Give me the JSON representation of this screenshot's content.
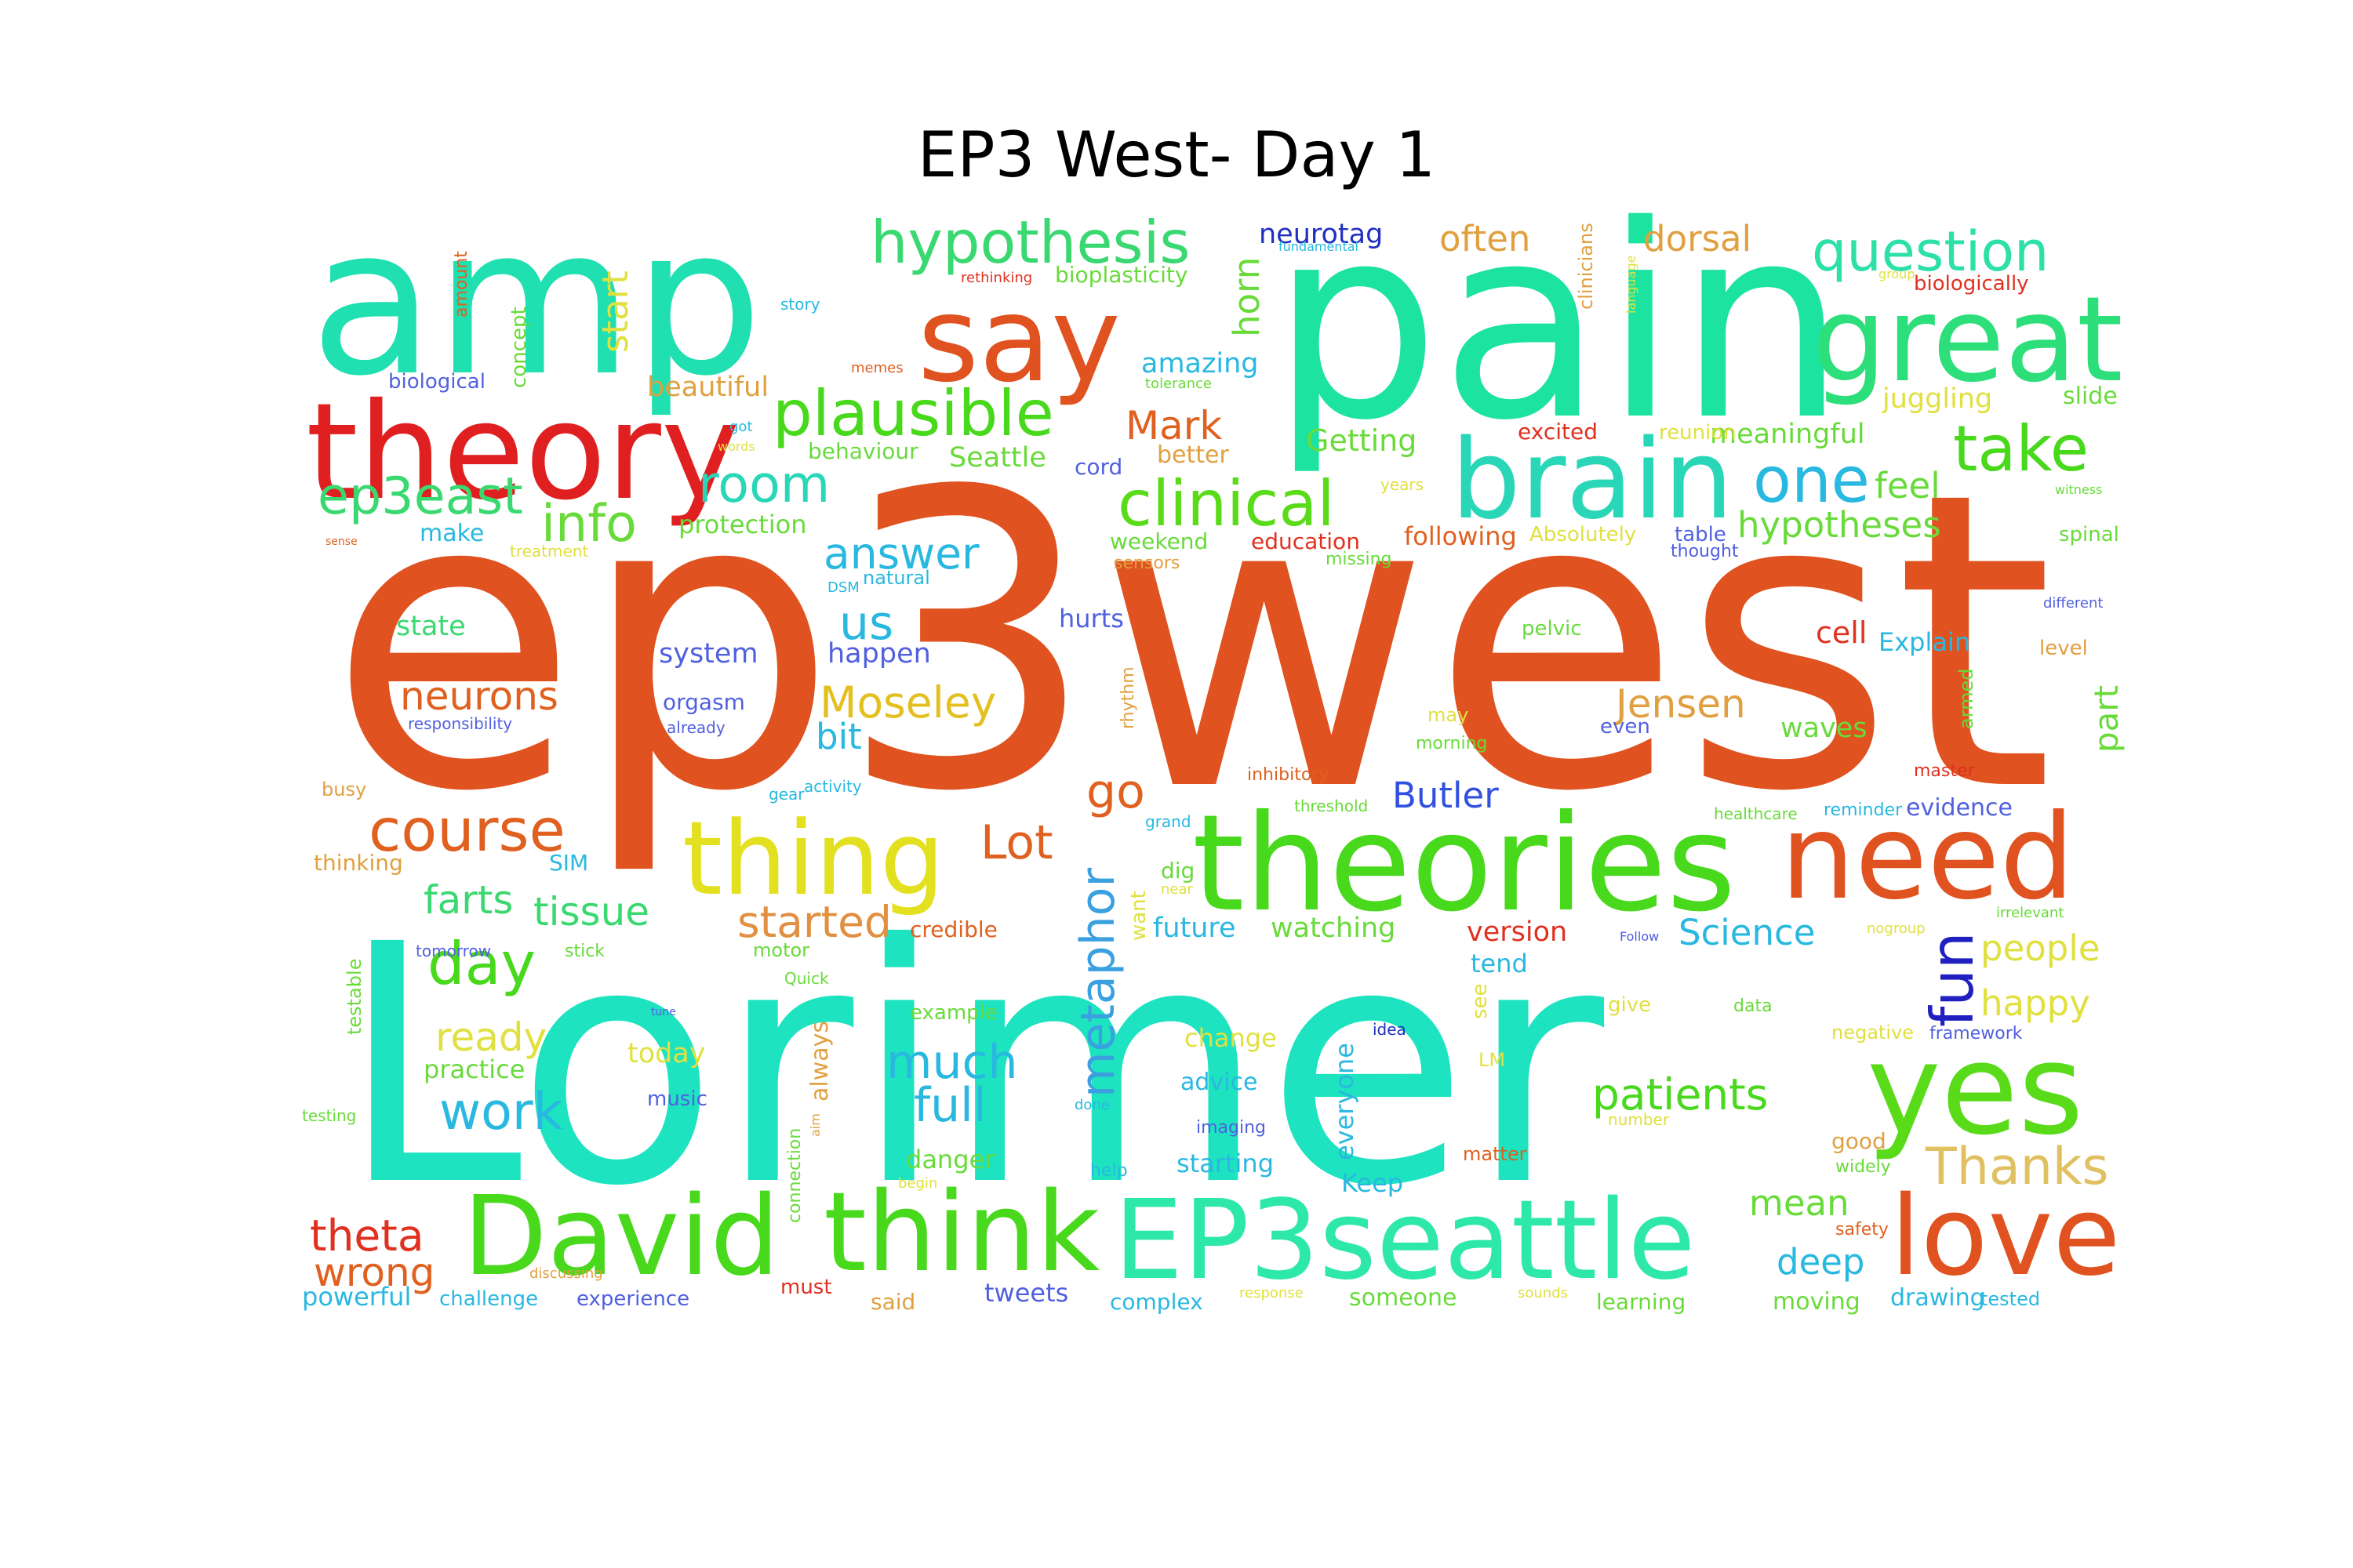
{
  "title": "EP3 West- Day 1",
  "words": [
    {
      "text": "ep3west",
      "color": "#e0521f"
    },
    {
      "text": "Lorimer",
      "color": "#1de3c0"
    },
    {
      "text": "pain",
      "color": "#1de3a0"
    },
    {
      "text": "amp",
      "color": "#20dfb0"
    },
    {
      "text": "theories",
      "color": "#48d81c"
    },
    {
      "text": "theory",
      "color": "#e02020"
    },
    {
      "text": "say",
      "color": "#e0521f"
    },
    {
      "text": "great",
      "color": "#2ddf7a"
    },
    {
      "text": "brain",
      "color": "#2ad6b8"
    },
    {
      "text": "need",
      "color": "#e0521f"
    },
    {
      "text": "yes",
      "color": "#5adb1a"
    },
    {
      "text": "love",
      "color": "#e0521f"
    },
    {
      "text": "EP3seattle",
      "color": "#2de8a8"
    },
    {
      "text": "think",
      "color": "#48d81c"
    },
    {
      "text": "David",
      "color": "#48d81c"
    },
    {
      "text": "thing",
      "color": "#e3e020"
    },
    {
      "text": "hypothesis",
      "color": "#3ad870"
    },
    {
      "text": "plausible",
      "color": "#48d81c"
    },
    {
      "text": "question",
      "color": "#2de0a8"
    },
    {
      "text": "clinical",
      "color": "#5adb1a"
    },
    {
      "text": "take",
      "color": "#48d81c"
    },
    {
      "text": "one",
      "color": "#28b8e0"
    },
    {
      "text": "course",
      "color": "#e06020"
    },
    {
      "text": "ep3east",
      "color": "#3ad870"
    },
    {
      "text": "info",
      "color": "#68db3a"
    },
    {
      "text": "room",
      "color": "#2ad6b8"
    },
    {
      "text": "metaphor",
      "color": "#3aa0e0"
    },
    {
      "text": "fun",
      "color": "#2020c0"
    },
    {
      "text": "day",
      "color": "#48d81c"
    },
    {
      "text": "work",
      "color": "#28b8e0"
    },
    {
      "text": "patients",
      "color": "#48d81c"
    },
    {
      "text": "Thanks",
      "color": "#e0c060"
    },
    {
      "text": "Moseley",
      "color": "#e3c020"
    },
    {
      "text": "neurons",
      "color": "#e06020"
    },
    {
      "text": "answer",
      "color": "#28b8e0"
    },
    {
      "text": "much",
      "color": "#28b8e0"
    },
    {
      "text": "full",
      "color": "#28b8e0"
    },
    {
      "text": "go",
      "color": "#e06020"
    },
    {
      "text": "Lot",
      "color": "#e06020"
    },
    {
      "text": "started",
      "color": "#e09040"
    },
    {
      "text": "Jensen",
      "color": "#e0a040"
    },
    {
      "text": "hypotheses",
      "color": "#68db3a"
    },
    {
      "text": "Mark",
      "color": "#e06020"
    },
    {
      "text": "people",
      "color": "#e0e040"
    },
    {
      "text": "happy",
      "color": "#e0e040"
    },
    {
      "text": "theta",
      "color": "#e03020"
    },
    {
      "text": "wrong",
      "color": "#e06020"
    },
    {
      "text": "ready",
      "color": "#e0e040"
    },
    {
      "text": "tissue",
      "color": "#3ad870"
    },
    {
      "text": "farts",
      "color": "#3ad870"
    },
    {
      "text": "Butler",
      "color": "#3050e0"
    },
    {
      "text": "mean",
      "color": "#68db3a"
    },
    {
      "text": "deep",
      "color": "#28b8e0"
    },
    {
      "text": "Science",
      "color": "#28b8e0"
    },
    {
      "text": "us",
      "color": "#28b8e0"
    },
    {
      "text": "bit",
      "color": "#28b8e0"
    },
    {
      "text": "horn",
      "color": "#68db3a"
    },
    {
      "text": "amazing",
      "color": "#28b8e0"
    },
    {
      "text": "dorsal",
      "color": "#e0a040"
    },
    {
      "text": "often",
      "color": "#e0a040"
    },
    {
      "text": "neurotag",
      "color": "#2030c0"
    },
    {
      "text": "Seattle",
      "color": "#68db3a"
    },
    {
      "text": "Getting",
      "color": "#68db3a"
    },
    {
      "text": "feel",
      "color": "#68db3a"
    },
    {
      "text": "juggling",
      "color": "#e0e040"
    },
    {
      "text": "meaningful",
      "color": "#68db3a"
    },
    {
      "text": "start",
      "color": "#e0e040"
    },
    {
      "text": "beautiful",
      "color": "#e0a040"
    },
    {
      "text": "protection",
      "color": "#68db3a"
    },
    {
      "text": "make",
      "color": "#28b8e0"
    },
    {
      "text": "state",
      "color": "#3ad870"
    },
    {
      "text": "system",
      "color": "#5060e0"
    },
    {
      "text": "happen",
      "color": "#5060e0"
    },
    {
      "text": "orgasm",
      "color": "#5060e0"
    },
    {
      "text": "hurts",
      "color": "#5060e0"
    },
    {
      "text": "cell",
      "color": "#e03020"
    },
    {
      "text": "Explain",
      "color": "#28b8e0"
    },
    {
      "text": "part",
      "color": "#68db3a"
    },
    {
      "text": "waves",
      "color": "#68db3a"
    },
    {
      "text": "evidence",
      "color": "#5060e0"
    },
    {
      "text": "version",
      "color": "#e03020"
    },
    {
      "text": "future",
      "color": "#28b8e0"
    },
    {
      "text": "watching",
      "color": "#68db3a"
    },
    {
      "text": "tend",
      "color": "#28b8e0"
    },
    {
      "text": "advice",
      "color": "#28b8e0"
    },
    {
      "text": "change",
      "color": "#e0e040"
    },
    {
      "text": "everyone",
      "color": "#28b8e0"
    },
    {
      "text": "Keep",
      "color": "#28b8e0"
    },
    {
      "text": "starting",
      "color": "#28b8e0"
    },
    {
      "text": "danger",
      "color": "#68db3a"
    },
    {
      "text": "always",
      "color": "#e0a040"
    },
    {
      "text": "today",
      "color": "#e0e040"
    },
    {
      "text": "practice",
      "color": "#68db3a"
    },
    {
      "text": "tweets",
      "color": "#5060e0"
    },
    {
      "text": "complex",
      "color": "#28b8e0"
    },
    {
      "text": "someone",
      "color": "#68db3a"
    },
    {
      "text": "learning",
      "color": "#68db3a"
    },
    {
      "text": "moving",
      "color": "#68db3a"
    },
    {
      "text": "drawing",
      "color": "#28b8e0"
    },
    {
      "text": "powerful",
      "color": "#28b8e0"
    },
    {
      "text": "said",
      "color": "#e0a040"
    },
    {
      "text": "good",
      "color": "#e0a040"
    },
    {
      "text": "following",
      "color": "#e06020"
    },
    {
      "text": "education",
      "color": "#e03020"
    },
    {
      "text": "weekend",
      "color": "#68db3a"
    },
    {
      "text": "Absolutely",
      "color": "#e0e040"
    },
    {
      "text": "table",
      "color": "#5060e0"
    },
    {
      "text": "better",
      "color": "#e0a040"
    },
    {
      "text": "behaviour",
      "color": "#68db3a"
    },
    {
      "text": "cord",
      "color": "#5060e0"
    },
    {
      "text": "biological",
      "color": "#5060e0"
    },
    {
      "text": "bioplasticity",
      "color": "#68db3a"
    },
    {
      "text": "biologically",
      "color": "#e03020"
    },
    {
      "text": "concept",
      "color": "#68db3a"
    },
    {
      "text": "amount",
      "color": "#e06020"
    },
    {
      "text": "clinicians",
      "color": "#e0a040"
    },
    {
      "text": "slide",
      "color": "#68db3a"
    },
    {
      "text": "spinal",
      "color": "#68db3a"
    },
    {
      "text": "reunion",
      "color": "#e0e040"
    },
    {
      "text": "excited",
      "color": "#e03020"
    },
    {
      "text": "pelvic",
      "color": "#68db3a"
    },
    {
      "text": "level",
      "color": "#e0a040"
    },
    {
      "text": "armed",
      "color": "#68db3a"
    },
    {
      "text": "dig",
      "color": "#68db3a"
    },
    {
      "text": "want",
      "color": "#e0e040"
    },
    {
      "text": "credible",
      "color": "#e06020"
    },
    {
      "text": "rhythm",
      "color": "#e0a040"
    },
    {
      "text": "thinking",
      "color": "#e0a040"
    },
    {
      "text": "testable",
      "color": "#68db3a"
    },
    {
      "text": "SIM",
      "color": "#28b8e0"
    },
    {
      "text": "even",
      "color": "#5060e0"
    },
    {
      "text": "thought",
      "color": "#5060e0"
    },
    {
      "text": "sensors",
      "color": "#e0a040"
    },
    {
      "text": "natural",
      "color": "#28b8e0"
    },
    {
      "text": "music",
      "color": "#5060e0"
    },
    {
      "text": "motor",
      "color": "#68db3a"
    },
    {
      "text": "see",
      "color": "#e0e040"
    },
    {
      "text": "LM",
      "color": "#e0e040"
    },
    {
      "text": "imaging",
      "color": "#5060e0"
    },
    {
      "text": "example",
      "color": "#68db3a"
    },
    {
      "text": "missing",
      "color": "#68db3a"
    },
    {
      "text": "years",
      "color": "#e0e040"
    },
    {
      "text": "may",
      "color": "#e0e040"
    },
    {
      "text": "morning",
      "color": "#68db3a"
    },
    {
      "text": "master",
      "color": "#e03020"
    },
    {
      "text": "negative",
      "color": "#e0e040"
    },
    {
      "text": "framework",
      "color": "#5060e0"
    },
    {
      "text": "matter",
      "color": "#e06020"
    },
    {
      "text": "give",
      "color": "#e0e040"
    },
    {
      "text": "data",
      "color": "#68db3a"
    },
    {
      "text": "idea",
      "color": "#2030c0"
    },
    {
      "text": "help",
      "color": "#28b8e0"
    },
    {
      "text": "safety",
      "color": "#e06020"
    },
    {
      "text": "widely",
      "color": "#68db3a"
    },
    {
      "text": "tested",
      "color": "#28b8e0"
    },
    {
      "text": "must",
      "color": "#e03020"
    },
    {
      "text": "experience",
      "color": "#5060e0"
    },
    {
      "text": "challenge",
      "color": "#28b8e0"
    },
    {
      "text": "connection",
      "color": "#68db3a"
    },
    {
      "text": "busy",
      "color": "#e0a040"
    },
    {
      "text": "threshold",
      "color": "#68db3a"
    },
    {
      "text": "inhibitory",
      "color": "#e06020"
    },
    {
      "text": "activity",
      "color": "#28b8e0"
    },
    {
      "text": "reminder",
      "color": "#28b8e0"
    },
    {
      "text": "healthcare",
      "color": "#68db3a"
    },
    {
      "text": "treatment",
      "color": "#e0e040"
    },
    {
      "text": "different",
      "color": "#5060e0"
    },
    {
      "text": "irrelevant",
      "color": "#68db3a"
    },
    {
      "text": "nogroup",
      "color": "#e0e040"
    },
    {
      "text": "already",
      "color": "#5060e0"
    },
    {
      "text": "responsibility",
      "color": "#5060e0"
    },
    {
      "text": "tomorrow",
      "color": "#5060e0"
    },
    {
      "text": "stick",
      "color": "#68db3a"
    },
    {
      "text": "Quick",
      "color": "#68db3a"
    },
    {
      "text": "done",
      "color": "#28b8e0"
    },
    {
      "text": "begin",
      "color": "#e0e040"
    },
    {
      "text": "testing",
      "color": "#68db3a"
    },
    {
      "text": "discussing",
      "color": "#e0a040"
    },
    {
      "text": "sounds",
      "color": "#e0e040"
    },
    {
      "text": "response",
      "color": "#e0e040"
    },
    {
      "text": "number",
      "color": "#e0e040"
    },
    {
      "text": "grand",
      "color": "#28b8e0"
    },
    {
      "text": "gear",
      "color": "#28b8e0"
    },
    {
      "text": "story",
      "color": "#28b8e0"
    },
    {
      "text": "memes",
      "color": "#e06020"
    },
    {
      "text": "tolerance",
      "color": "#68db3a"
    },
    {
      "text": "language",
      "color": "#e0e040"
    },
    {
      "text": "witness",
      "color": "#68db3a"
    },
    {
      "text": "rethinking",
      "color": "#e03020"
    },
    {
      "text": "group",
      "color": "#e0e040"
    },
    {
      "text": "words",
      "color": "#e0e040"
    },
    {
      "text": "got",
      "color": "#28b8e0"
    },
    {
      "text": "DSM",
      "color": "#28b8e0"
    },
    {
      "text": "near",
      "color": "#e0e040"
    },
    {
      "text": "Follow",
      "color": "#5060e0"
    },
    {
      "text": "fundamental",
      "color": "#28b8e0"
    },
    {
      "text": "tune",
      "color": "#5060e0"
    },
    {
      "text": "aim",
      "color": "#e0a040"
    },
    {
      "text": "sense",
      "color": "#e06020"
    }
  ]
}
